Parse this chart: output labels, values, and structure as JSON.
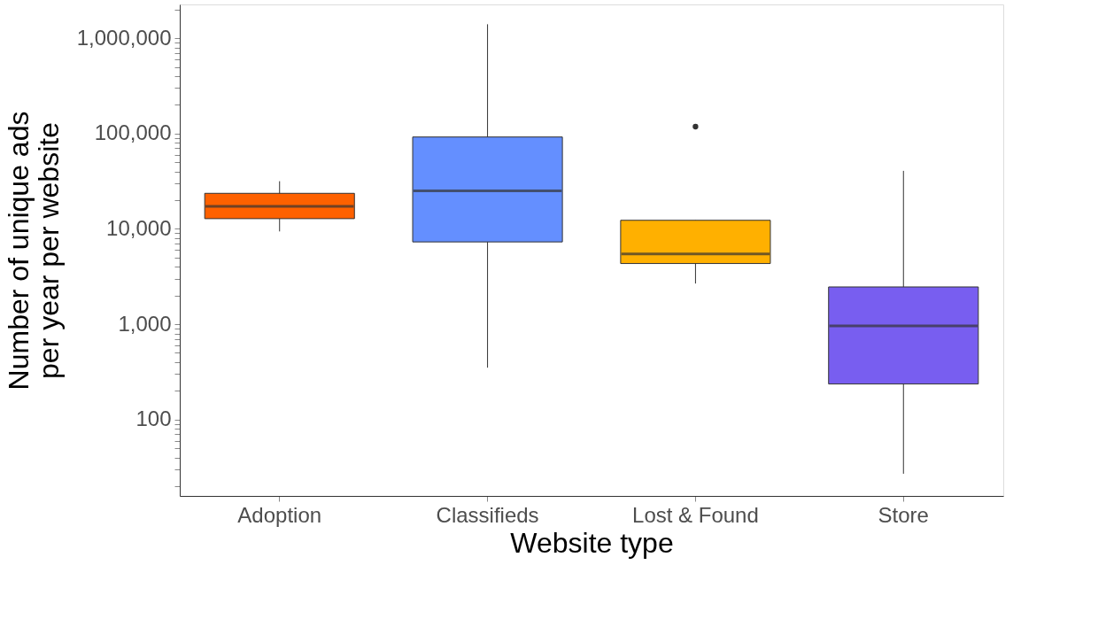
{
  "chart_data": {
    "type": "box",
    "xlabel": "Website type",
    "ylabel": "Number of unique ads\nper year per website",
    "categories": [
      "Adoption",
      "Classifieds",
      "Lost & Found",
      "Store"
    ],
    "colors": [
      "#fe6100",
      "#648fff",
      "#ffb000",
      "#785ef0"
    ],
    "boxes": [
      {
        "low": 9400,
        "q1": 12800,
        "median": 17200,
        "q3": 23600,
        "high": 31600
      },
      {
        "low": 350,
        "q1": 7300,
        "median": 25100,
        "q3": 92000,
        "high": 1400000
      },
      {
        "low": 2670,
        "q1": 4330,
        "median": 5450,
        "q3": 12300,
        "high": 12300,
        "outliers": [
          118000
        ]
      },
      {
        "low": 27,
        "q1": 236,
        "median": 960,
        "q3": 2460,
        "high": 40600
      }
    ],
    "log": true,
    "ylim": [
      15.8,
      2260000
    ],
    "yticks": [
      {
        "value": 20,
        "label": null
      },
      {
        "value": 30,
        "label": null
      },
      {
        "value": 40,
        "label": null
      },
      {
        "value": 50,
        "label": null
      },
      {
        "value": 60,
        "label": null
      },
      {
        "value": 70,
        "label": null
      },
      {
        "value": 80,
        "label": null
      },
      {
        "value": 90,
        "label": null
      },
      {
        "value": 100,
        "label": "100"
      },
      {
        "value": 200,
        "label": null
      },
      {
        "value": 300,
        "label": null
      },
      {
        "value": 400,
        "label": null
      },
      {
        "value": 500,
        "label": null
      },
      {
        "value": 600,
        "label": null
      },
      {
        "value": 700,
        "label": null
      },
      {
        "value": 800,
        "label": null
      },
      {
        "value": 900,
        "label": null
      },
      {
        "value": 1000,
        "label": "1,000"
      },
      {
        "value": 2000,
        "label": null
      },
      {
        "value": 3000,
        "label": null
      },
      {
        "value": 4000,
        "label": null
      },
      {
        "value": 5000,
        "label": null
      },
      {
        "value": 6000,
        "label": null
      },
      {
        "value": 7000,
        "label": null
      },
      {
        "value": 8000,
        "label": null
      },
      {
        "value": 9000,
        "label": null
      },
      {
        "value": 10000,
        "label": "10,000"
      },
      {
        "value": 20000,
        "label": null
      },
      {
        "value": 30000,
        "label": null
      },
      {
        "value": 40000,
        "label": null
      },
      {
        "value": 50000,
        "label": null
      },
      {
        "value": 60000,
        "label": null
      },
      {
        "value": 70000,
        "label": null
      },
      {
        "value": 80000,
        "label": null
      },
      {
        "value": 90000,
        "label": null
      },
      {
        "value": 100000,
        "label": "100,000"
      },
      {
        "value": 200000,
        "label": null
      },
      {
        "value": 300000,
        "label": null
      },
      {
        "value": 400000,
        "label": null
      },
      {
        "value": 500000,
        "label": null
      },
      {
        "value": 600000,
        "label": null
      },
      {
        "value": 700000,
        "label": null
      },
      {
        "value": 800000,
        "label": null
      },
      {
        "value": 900000,
        "label": null
      },
      {
        "value": 1000000,
        "label": "1,000,000"
      },
      {
        "value": 2000000,
        "label": null
      }
    ],
    "grid": false,
    "legend": false
  }
}
